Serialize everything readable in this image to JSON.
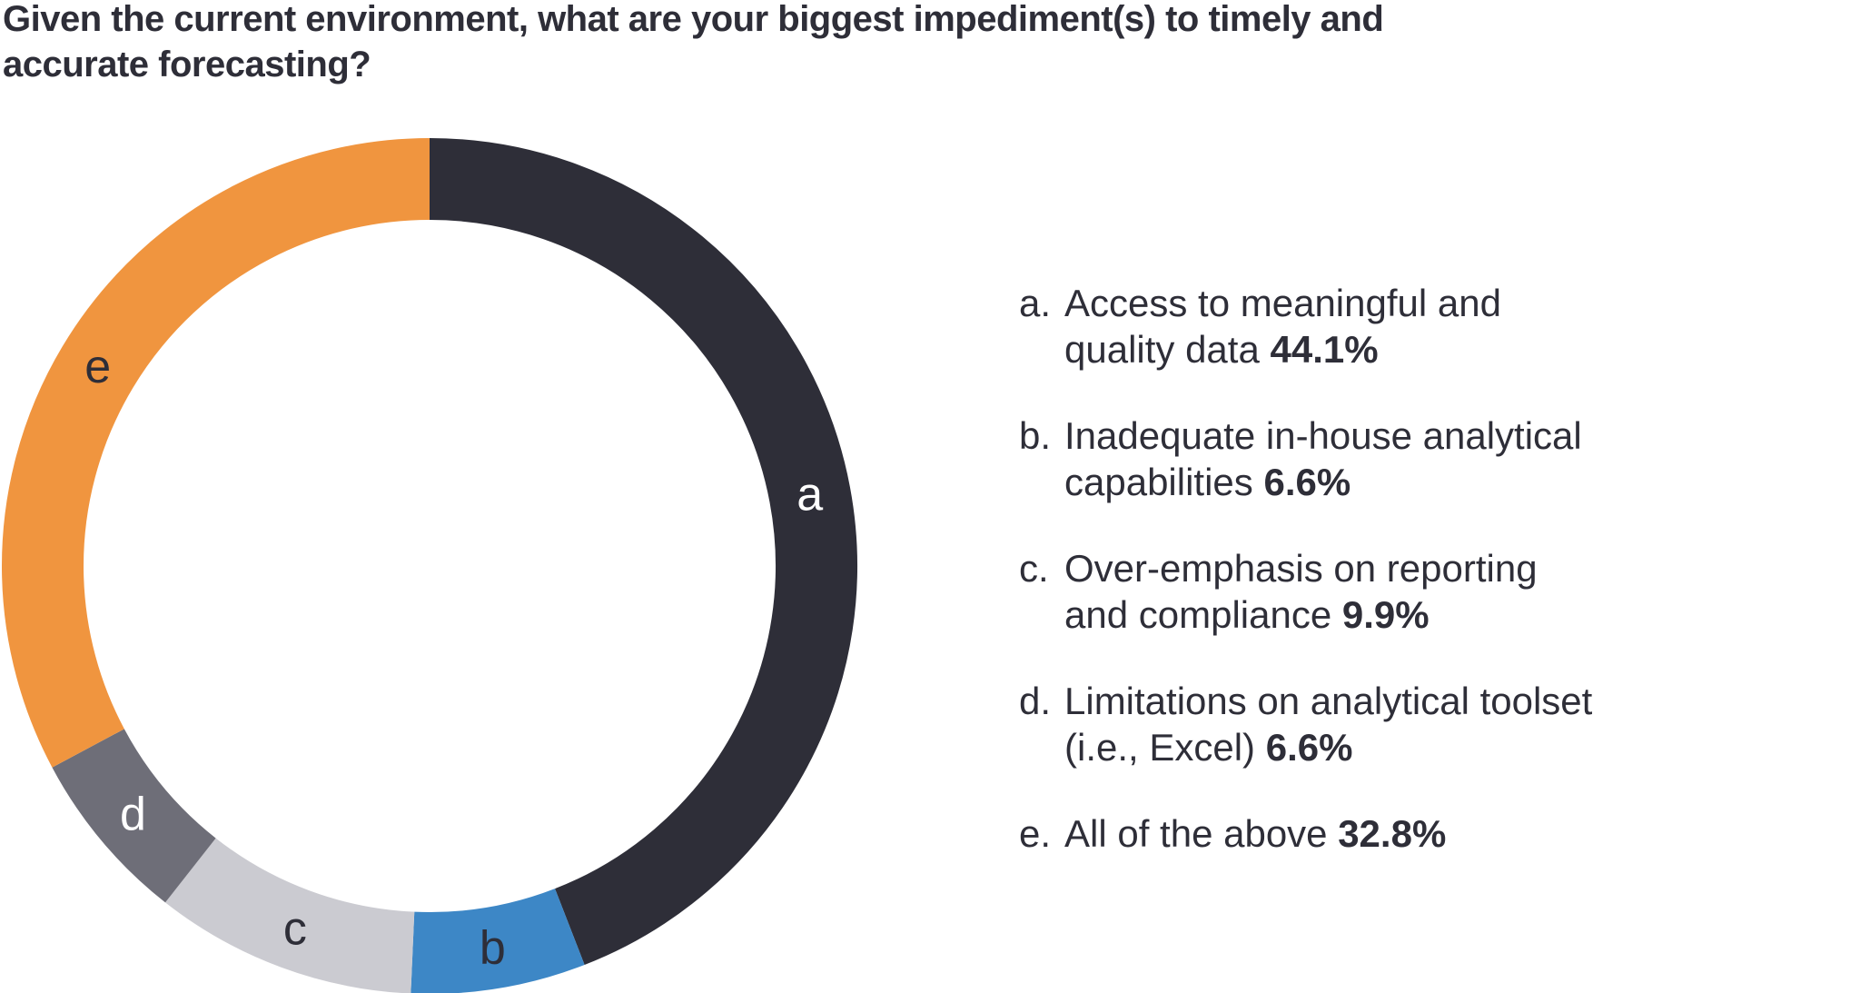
{
  "page": {
    "background": "#FFFFFF",
    "text_color": "#2E2E38"
  },
  "header": {
    "title": "Given the current environment, what are your biggest impediment(s) to timely and accurate forecasting?",
    "title_lines": [
      "Given the current environment, what are your biggest impediment(s) to timely and",
      "accurate forecasting?"
    ]
  },
  "chart_data": {
    "type": "pie",
    "variant": "donut",
    "title": "Given the current environment, what are your biggest impediment(s) to timely and accurate forecasting?",
    "unit": "%",
    "start_angle_deg": 0,
    "direction": "clockwise",
    "legend_position": "right",
    "series": [
      {
        "label": "a",
        "name": "Access to meaningful and quality data",
        "value": 44.1,
        "color": "#2E2E38",
        "slice_label_color": "#FFFFFF"
      },
      {
        "label": "b",
        "name": "Inadequate in-house analytical capabilities",
        "value": 6.6,
        "color": "#3D87C6",
        "slice_label_color": "#2E2E38"
      },
      {
        "label": "c",
        "name": "Over-emphasis on reporting and compliance",
        "value": 9.9,
        "color": "#CBCBD1",
        "slice_label_color": "#2E2E38"
      },
      {
        "label": "d",
        "name": "Limitations on analytical toolset (i.e., Excel)",
        "value": 6.6,
        "color": "#6E6E78",
        "slice_label_color": "#FFFFFF"
      },
      {
        "label": "e",
        "name": "All of the above",
        "value": 32.8,
        "color": "#F0953F",
        "slice_label_color": "#2E2E38"
      }
    ]
  },
  "legend": {
    "items": [
      {
        "marker": "a.",
        "lines": [
          "Access to meaningful and",
          "quality data"
        ],
        "pct": "44.1%"
      },
      {
        "marker": "b.",
        "lines": [
          "Inadequate in-house analytical",
          "capabilities"
        ],
        "pct": "6.6%"
      },
      {
        "marker": "c.",
        "lines": [
          "Over-emphasis on reporting",
          "and compliance"
        ],
        "pct": "9.9%"
      },
      {
        "marker": "d.",
        "lines": [
          "Limitations on analytical toolset",
          "(i.e., Excel)"
        ],
        "pct": "6.6%"
      },
      {
        "marker": "e.",
        "lines": [
          "All of the above"
        ],
        "pct": "32.8%"
      }
    ]
  }
}
